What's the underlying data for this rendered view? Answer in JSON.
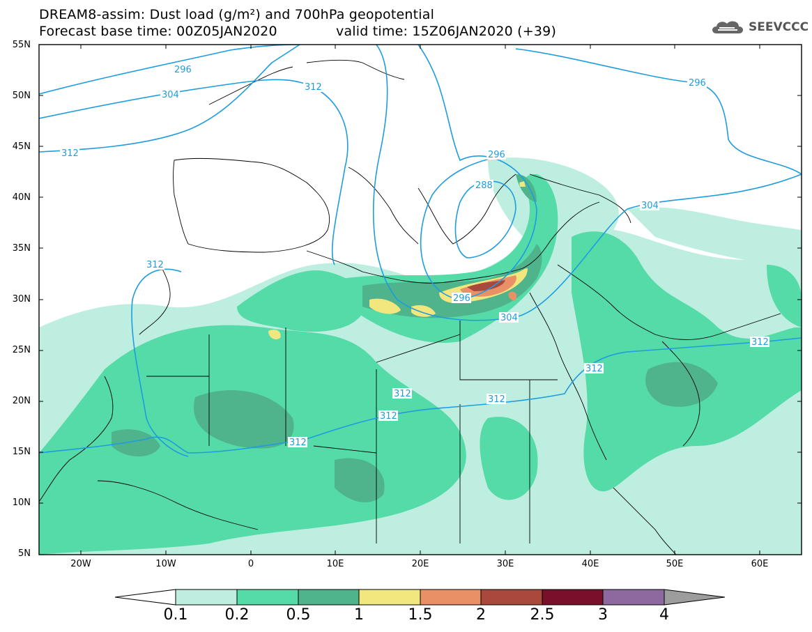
{
  "header": {
    "line1": "DREAM8-assim: Dust load (g/m²) and 700hPa geopotential",
    "base_time": "Forecast base time: 00Z05JAN2020",
    "valid_time": "valid time: 15Z06JAN2020 (+39)"
  },
  "logo": {
    "name": "SEEVCCC",
    "icon": "cloud-icon"
  },
  "map": {
    "lat_labels": [
      "55N",
      "50N",
      "45N",
      "40N",
      "35N",
      "30N",
      "25N",
      "20N",
      "15N",
      "10N",
      "5N"
    ],
    "lon_labels": [
      "20W",
      "10W",
      "0",
      "10E",
      "20E",
      "30E",
      "40E",
      "50E",
      "60E"
    ],
    "contour_labels": [
      "296",
      "304",
      "312",
      "312",
      "296",
      "296",
      "288",
      "304",
      "296",
      "304",
      "312",
      "312",
      "312",
      "312",
      "312",
      "312",
      "312"
    ]
  },
  "colorbar": {
    "levels": [
      "0.1",
      "0.2",
      "0.5",
      "1",
      "1.5",
      "2",
      "2.5",
      "3",
      "4"
    ],
    "colors": [
      "#ffffff",
      "#bdeee0",
      "#55dba8",
      "#4fb38c",
      "#f2e67e",
      "#ea9067",
      "#a8493c",
      "#7a0f2a",
      "#8c6a9f",
      "#9d9d9d"
    ]
  }
}
